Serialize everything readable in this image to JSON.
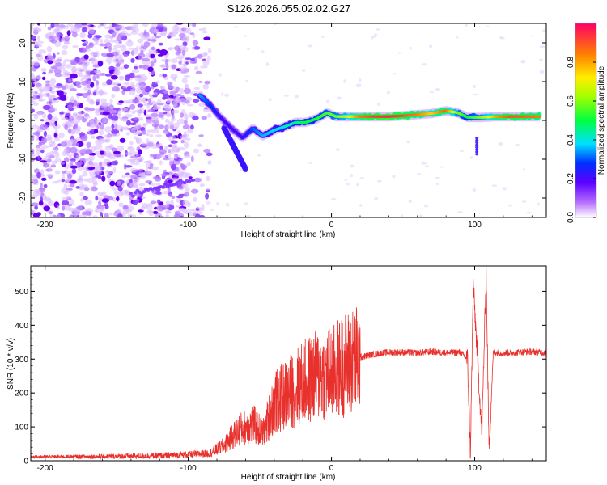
{
  "chart_data": [
    {
      "type": "heatmap",
      "title": "S126.2026.055.02.02.G27",
      "xlabel": "Height of straight line (km)",
      "ylabel": "Frequency (Hz)",
      "xlim": [
        -210,
        150
      ],
      "ylim": [
        -25,
        25
      ],
      "xticks": [
        -200,
        -100,
        0,
        100
      ],
      "yticks": [
        -20,
        -10,
        0,
        10,
        20
      ],
      "xtick_labels": [
        "-200",
        "-100",
        "0",
        "100"
      ],
      "ytick_labels": [
        "-20",
        "-10",
        "0",
        "10",
        "20"
      ],
      "colorbar": {
        "label": "Normalized spectral amplitude",
        "range": [
          0,
          1
        ],
        "ticks": [
          0,
          0.2,
          0.4,
          0.6,
          0.8
        ],
        "tick_labels": [
          "0.0",
          "0.2",
          "0.4",
          "0.6",
          "0.8"
        ]
      },
      "ridge": [
        {
          "x": -92,
          "f": 6.5,
          "amp": 0.35
        },
        {
          "x": -85,
          "f": 4.0,
          "amp": 0.28
        },
        {
          "x": -78,
          "f": 1.0,
          "amp": 0.22
        },
        {
          "x": -70,
          "f": -2.0,
          "amp": 0.2
        },
        {
          "x": -62,
          "f": -4.5,
          "amp": 0.22
        },
        {
          "x": -55,
          "f": -2.0,
          "amp": 0.3
        },
        {
          "x": -48,
          "f": -4.0,
          "amp": 0.35
        },
        {
          "x": -40,
          "f": -2.5,
          "amp": 0.38
        },
        {
          "x": -32,
          "f": -1.5,
          "amp": 0.42
        },
        {
          "x": -25,
          "f": -0.5,
          "amp": 0.45
        },
        {
          "x": -18,
          "f": -0.5,
          "amp": 0.5
        },
        {
          "x": -10,
          "f": 0.5,
          "amp": 0.52
        },
        {
          "x": -3,
          "f": 2.0,
          "amp": 0.55
        },
        {
          "x": 3,
          "f": 1.0,
          "amp": 0.58
        },
        {
          "x": 10,
          "f": 1.0,
          "amp": 0.65
        },
        {
          "x": 20,
          "f": 1.0,
          "amp": 0.85
        },
        {
          "x": 30,
          "f": 1.0,
          "amp": 0.92
        },
        {
          "x": 40,
          "f": 1.0,
          "amp": 0.95
        },
        {
          "x": 50,
          "f": 1.2,
          "amp": 0.9
        },
        {
          "x": 60,
          "f": 1.5,
          "amp": 0.85
        },
        {
          "x": 70,
          "f": 1.8,
          "amp": 0.75
        },
        {
          "x": 80,
          "f": 2.5,
          "amp": 0.88
        },
        {
          "x": 88,
          "f": 2.0,
          "amp": 0.6
        },
        {
          "x": 95,
          "f": 0.8,
          "amp": 0.5
        },
        {
          "x": 105,
          "f": 0.8,
          "amp": 0.6
        },
        {
          "x": 115,
          "f": 1.0,
          "amp": 0.8
        },
        {
          "x": 125,
          "f": 1.0,
          "amp": 0.9
        },
        {
          "x": 135,
          "f": 1.0,
          "amp": 0.88
        },
        {
          "x": 145,
          "f": 1.0,
          "amp": 0.85
        }
      ]
    },
    {
      "type": "line",
      "title": "",
      "xlabel": "Height of straight line (km)",
      "ylabel": "SNR (10 * v/v)",
      "xlim": [
        -210,
        150
      ],
      "ylim": [
        0,
        575
      ],
      "xticks": [
        -200,
        -100,
        0,
        100
      ],
      "yticks": [
        0,
        100,
        200,
        300,
        400,
        500
      ],
      "xtick_labels": [
        "-200",
        "-100",
        "0",
        "100"
      ],
      "ytick_labels": [
        "0",
        "100",
        "200",
        "300",
        "400",
        "500"
      ],
      "series": [
        {
          "name": "SNR",
          "color": "#e8302c",
          "x": [
            -210,
            -180,
            -150,
            -120,
            -100,
            -85,
            -75,
            -65,
            -55,
            -48,
            -40,
            -30,
            -20,
            -10,
            0,
            10,
            20,
            30,
            40,
            50,
            60,
            70,
            80,
            90,
            95,
            97,
            99,
            102,
            105,
            108,
            110,
            113,
            120,
            130,
            140,
            150
          ],
          "y": [
            12,
            12,
            13,
            15,
            18,
            22,
            45,
            90,
            110,
            80,
            170,
            200,
            230,
            250,
            260,
            285,
            305,
            315,
            320,
            320,
            318,
            322,
            318,
            320,
            300,
            20,
            520,
            300,
            80,
            560,
            30,
            320,
            318,
            320,
            322,
            318
          ]
        }
      ]
    }
  ]
}
